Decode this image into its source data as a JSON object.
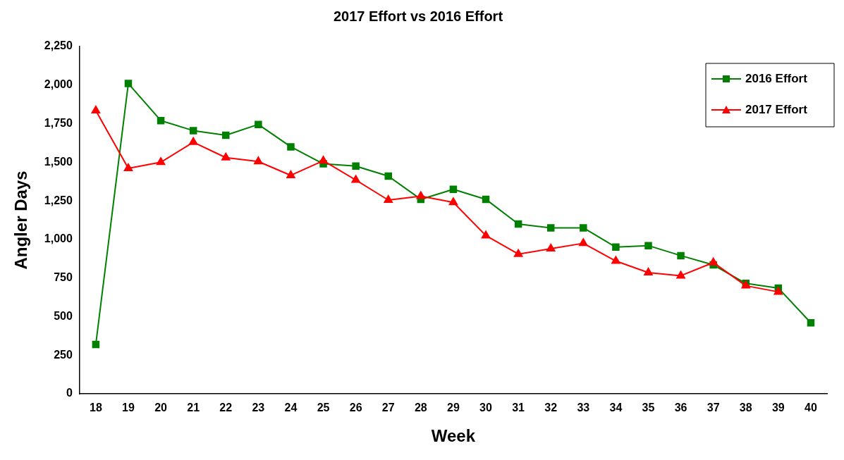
{
  "chart_data": {
    "type": "line",
    "title": "2017 Effort vs 2016 Effort",
    "xlabel": "Week",
    "ylabel": "Angler Days",
    "categories": [
      "18",
      "19",
      "20",
      "21",
      "22",
      "23",
      "24",
      "25",
      "26",
      "27",
      "28",
      "29",
      "30",
      "31",
      "32",
      "33",
      "34",
      "35",
      "36",
      "37",
      "38",
      "39",
      "40"
    ],
    "series": [
      {
        "name": "2016 Effort",
        "color": "#008000",
        "marker": "square",
        "values": [
          320,
          2010,
          1770,
          1705,
          1675,
          1745,
          1600,
          1490,
          1475,
          1410,
          1260,
          1325,
          1260,
          1100,
          1075,
          1075,
          950,
          960,
          895,
          835,
          715,
          685,
          460
        ]
      },
      {
        "name": "2017 Effort",
        "color": "#ff0000",
        "marker": "triangle",
        "values": [
          1835,
          1460,
          1500,
          1630,
          1530,
          1505,
          1415,
          1510,
          1385,
          1255,
          1280,
          1240,
          1025,
          905,
          940,
          975,
          860,
          785,
          765,
          850,
          700,
          660,
          null
        ]
      }
    ],
    "ylim": [
      0,
      2250
    ],
    "yticks": [
      0,
      250,
      500,
      750,
      {
        "value": 1000,
        "label": "1,000"
      },
      {
        "value": 1250,
        "label": "1,250"
      },
      {
        "value": 1500,
        "label": "1,500"
      },
      {
        "value": 1750,
        "label": "1,750"
      },
      {
        "value": 2000,
        "label": "2,000"
      },
      {
        "value": 2250,
        "label": "2,250"
      }
    ],
    "grid": false,
    "legend": "top right",
    "line_style": "solid"
  }
}
